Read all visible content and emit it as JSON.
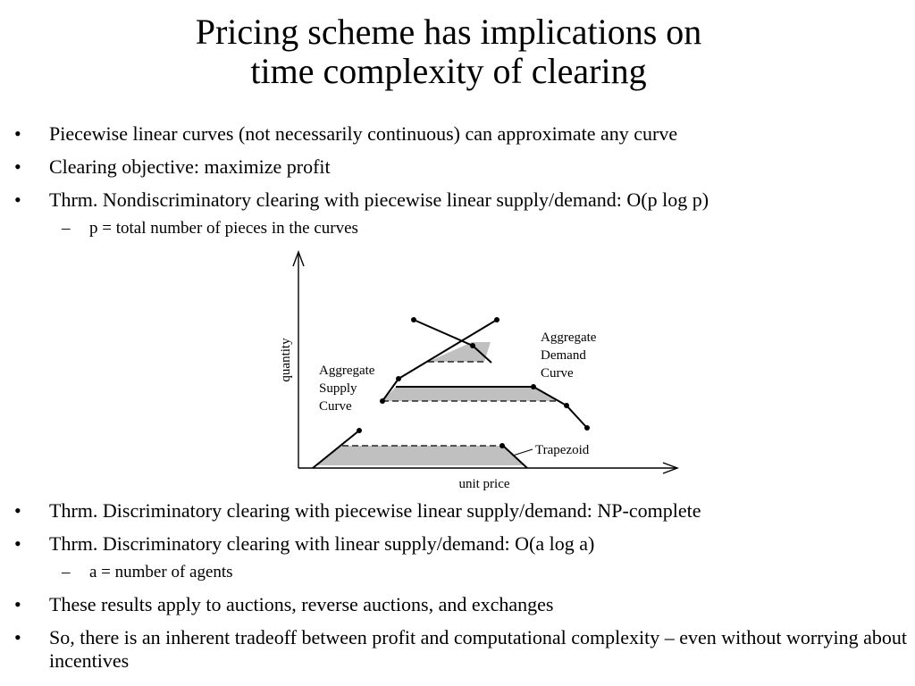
{
  "title": {
    "line1": "Pricing scheme has implications on",
    "line2": "time complexity of clearing"
  },
  "bullets_top": [
    {
      "text": "Piecewise linear curves (not necessarily continuous) can approximate any curve"
    },
    {
      "text": "Clearing objective: maximize profit"
    },
    {
      "text": "Thrm. Nondiscriminatory clearing with piecewise linear supply/demand: O(p log p)"
    }
  ],
  "sub_top": {
    "text": "p = total number of pieces in the curves"
  },
  "bullet_symbol": "•",
  "sub_symbol": "–",
  "diagram": {
    "y_axis_label": "quantity",
    "x_axis_label": "unit price",
    "supply_label": [
      "Aggregate",
      "Supply",
      "Curve"
    ],
    "demand_label": [
      "Aggregate",
      "Demand",
      "Curve"
    ],
    "trapezoid_label": "Trapezoid",
    "trapezoid_fill": "#c0c0c0"
  },
  "bullets_bottom": [
    {
      "text": "Thrm. Discriminatory clearing with piecewise linear supply/demand: NP-complete"
    },
    {
      "text": "Thrm. Discriminatory clearing with linear supply/demand: O(a log a)"
    }
  ],
  "sub_bottom": {
    "text": "a = number of agents"
  },
  "bullets_bottom2": [
    {
      "text": "These results apply to auctions, reverse auctions, and exchanges"
    },
    {
      "text": "So, there is an inherent tradeoff between profit and computational complexity – even without worrying about incentives"
    }
  ]
}
